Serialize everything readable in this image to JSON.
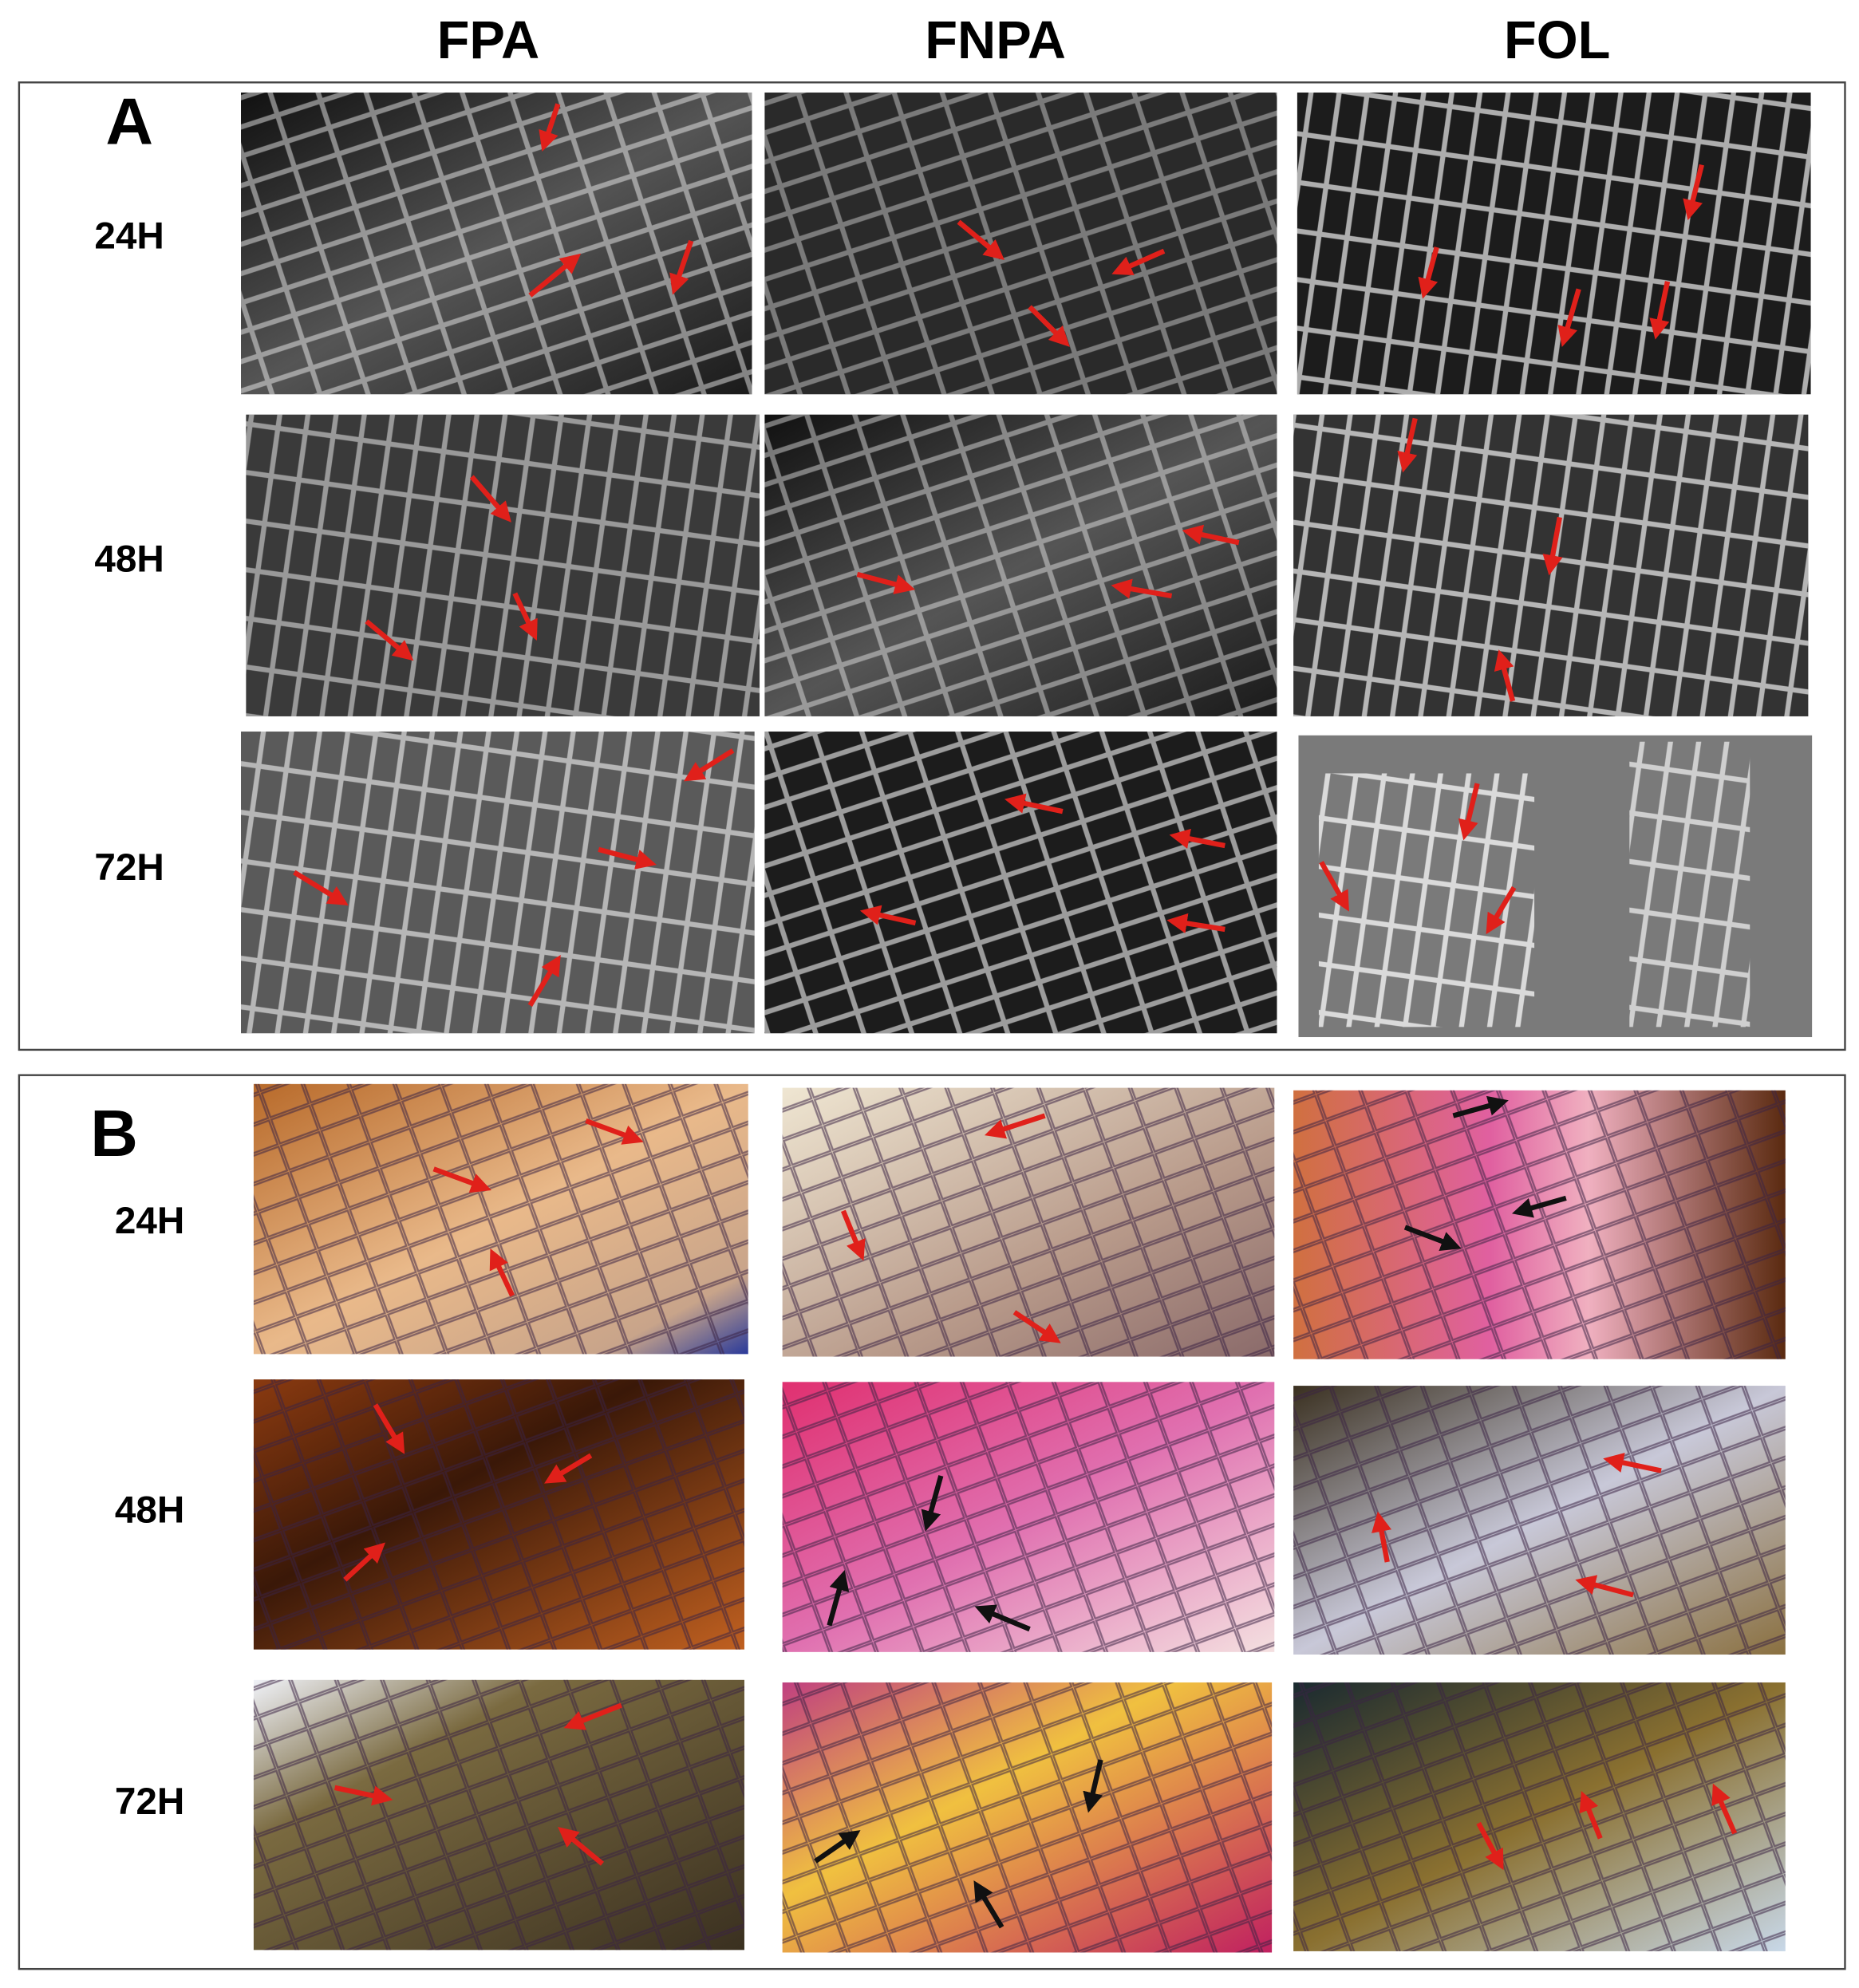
{
  "column_headers": [
    "FPA",
    "FNPA",
    "FOL"
  ],
  "panels": [
    {
      "label": "A",
      "rows": [
        "24H",
        "48H",
        "72H"
      ]
    },
    {
      "label": "B",
      "rows": [
        "24H",
        "48H",
        "72H"
      ]
    }
  ]
}
